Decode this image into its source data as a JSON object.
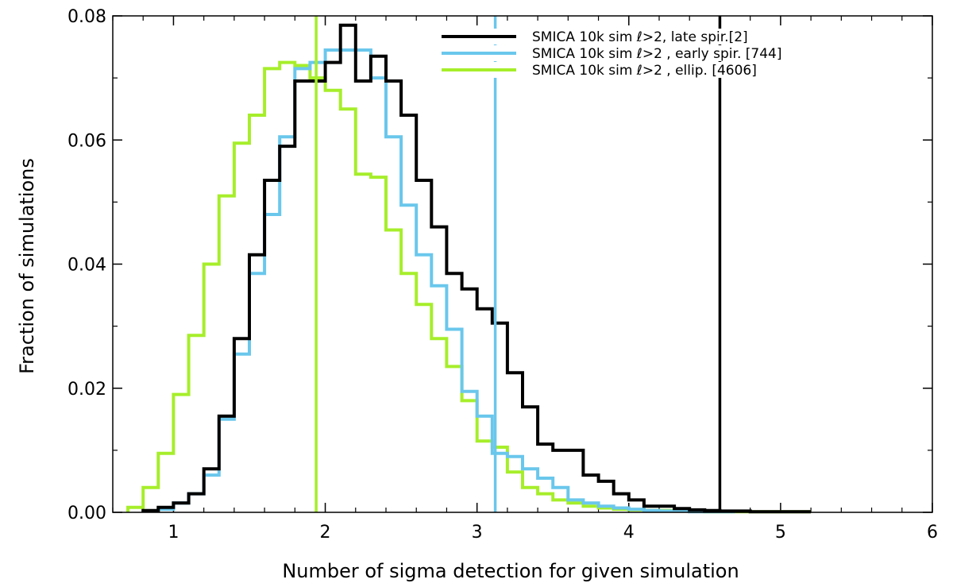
{
  "chart_data": {
    "type": "histogram",
    "title": "",
    "xlabel": "Number of sigma detection for given simulation",
    "ylabel": "Fraction of simulations",
    "xlim": [
      0.6,
      6.0
    ],
    "ylim": [
      0.0,
      0.08
    ],
    "bin_width": 0.1,
    "x_ticks": [
      1,
      2,
      3,
      4,
      5,
      6
    ],
    "x_tick_labels": [
      "1",
      "2",
      "3",
      "4",
      "5",
      "6"
    ],
    "y_ticks": [
      0.0,
      0.02,
      0.04,
      0.06,
      0.08
    ],
    "y_tick_labels": [
      "0.00",
      "0.02",
      "0.04",
      "0.06",
      "0.08"
    ],
    "legend_position": "top-right",
    "series": [
      {
        "name": "SMICA 10k sim ℓ>2, late spir.[2]",
        "color": "#000000",
        "marker": 4.6,
        "bin_start": 0.8,
        "values": [
          0.0003,
          0.0008,
          0.0015,
          0.003,
          0.007,
          0.0155,
          0.028,
          0.0415,
          0.0535,
          0.059,
          0.0695,
          0.0695,
          0.0725,
          0.0785,
          0.0695,
          0.0735,
          0.0695,
          0.064,
          0.0535,
          0.046,
          0.0385,
          0.036,
          0.0328,
          0.0305,
          0.0225,
          0.017,
          0.011,
          0.01,
          0.01,
          0.006,
          0.005,
          0.003,
          0.002,
          0.001,
          0.001,
          0.0006,
          0.0004,
          0.0003,
          0.0002,
          0.0002,
          0.0001,
          0.0001,
          0.0001,
          0.0001
        ]
      },
      {
        "name": "SMICA 10k sim ℓ>2 , early spir. [744]",
        "color": "#6ac7ec",
        "marker": 3.12,
        "bin_start": 0.9,
        "values": [
          0.0005,
          0.0015,
          0.003,
          0.006,
          0.015,
          0.0255,
          0.0385,
          0.048,
          0.0605,
          0.0715,
          0.0725,
          0.0745,
          0.0745,
          0.0745,
          0.07,
          0.0605,
          0.0495,
          0.0415,
          0.0365,
          0.0295,
          0.0195,
          0.0155,
          0.0095,
          0.009,
          0.007,
          0.0055,
          0.004,
          0.002,
          0.0015,
          0.001,
          0.0007,
          0.0005,
          0.0003,
          0.0002,
          0.0002,
          0.0001,
          0.0001,
          0.0001
        ]
      },
      {
        "name": "SMICA 10k sim ℓ>2 , ellip. [4606]",
        "color": "#a6ee2a",
        "marker": 1.94,
        "bin_start": 0.7,
        "values": [
          0.0008,
          0.004,
          0.0095,
          0.019,
          0.0285,
          0.04,
          0.051,
          0.0595,
          0.064,
          0.0715,
          0.0725,
          0.072,
          0.07,
          0.068,
          0.065,
          0.0545,
          0.054,
          0.0455,
          0.0385,
          0.0335,
          0.028,
          0.0235,
          0.018,
          0.0115,
          0.0105,
          0.0065,
          0.004,
          0.003,
          0.002,
          0.0015,
          0.001,
          0.0007,
          0.0005,
          0.0004,
          0.0003,
          0.0003,
          0.0002,
          0.0002,
          0.0001,
          0.0001,
          0.0001,
          0.0001,
          0.0001,
          0.0001,
          0.0001
        ]
      }
    ]
  }
}
